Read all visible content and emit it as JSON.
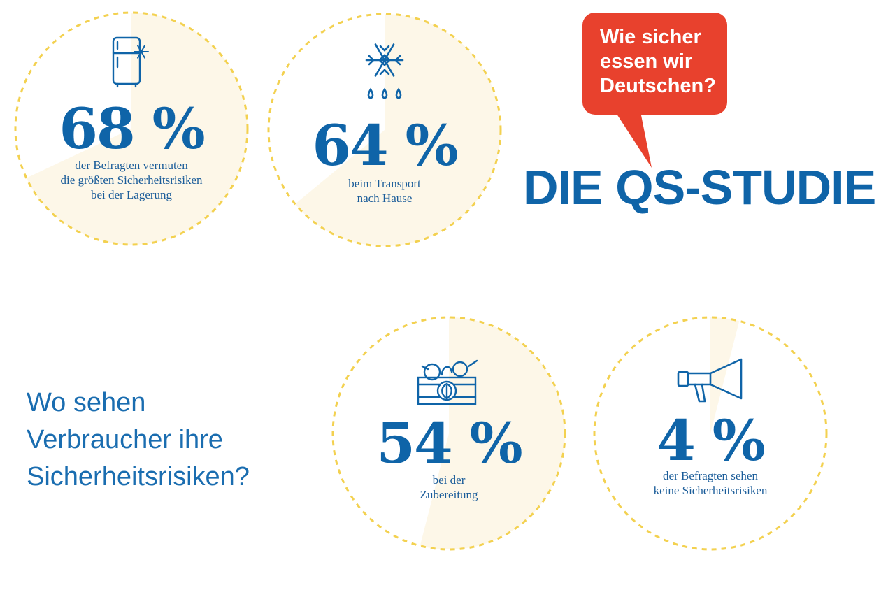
{
  "header": {
    "bubble_text": "Wie sicher\nessen wir\nDeutschen?",
    "title": "DIE QS-STUDIE"
  },
  "question": "Wo sehen\nVerbraucher ihre\nSicherheitsrisiken?",
  "colors": {
    "blue": "#0f64a8",
    "red": "#e8412d",
    "fill": "#fdf7e8",
    "dash": "#f3d150"
  },
  "chart_data": {
    "type": "pie",
    "unit": "%",
    "items": [
      {
        "value": 68,
        "label": "68 %",
        "caption": "der Befragten vermuten\ndie größten Sicherheitsrisiken\nbei der Lagerung",
        "icon": "fridge-icon"
      },
      {
        "value": 64,
        "label": "64 %",
        "caption": "beim Transport\nnach Hause",
        "icon": "snowflake-icon"
      },
      {
        "value": 54,
        "label": "54 %",
        "caption": "bei der\nZubereitung",
        "icon": "vegetable-crate-icon"
      },
      {
        "value": 4,
        "label": "4 %",
        "caption": "der Befragten sehen\nkeine Sicherheitsrisiken",
        "icon": "megaphone-icon"
      }
    ]
  }
}
